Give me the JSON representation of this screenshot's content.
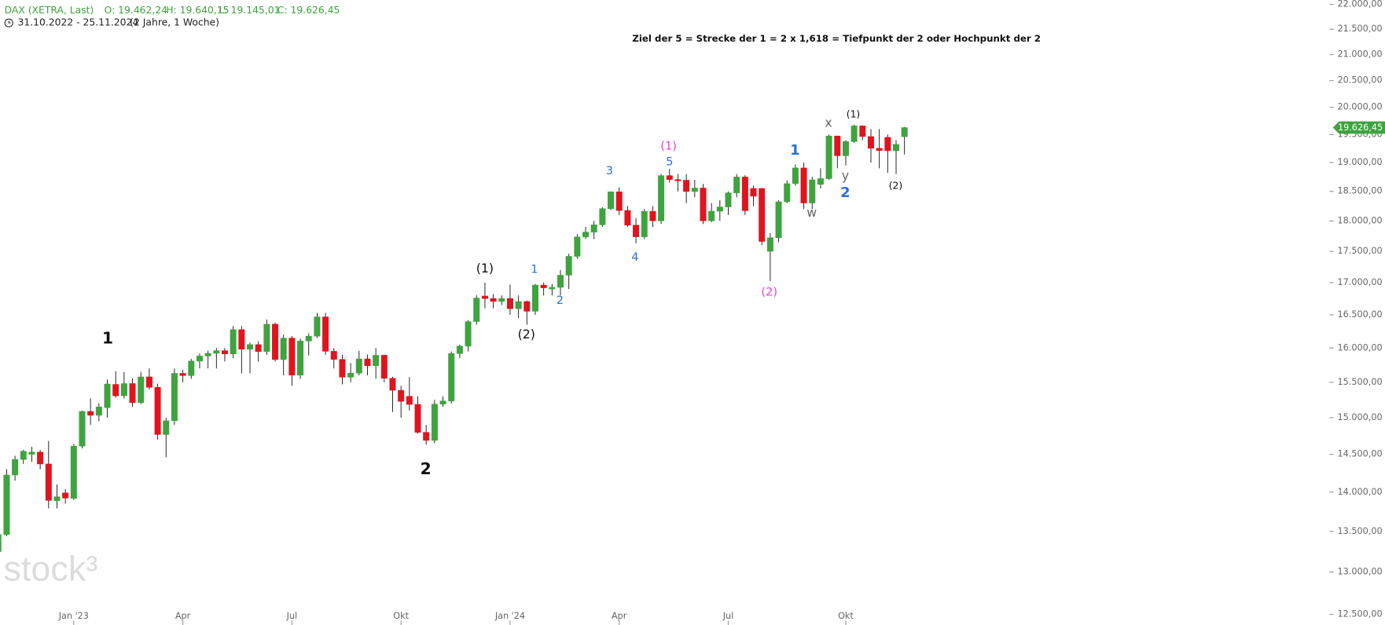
{
  "chart_data": {
    "type": "candlestick",
    "header": {
      "symbol": "DAX (XETRA, Last)",
      "ohlc": [
        "O: 19.462,24",
        "H: 19.640,15",
        "L: 19.145,01",
        "C: 19.626,45"
      ],
      "range": "31.10.2022 - 25.11.2024",
      "span": "(2 Jahre, 1 Woche)"
    },
    "title": "Ziel der 5 = Strecke der 1 = 2 x 1,618 = Tiefpunkt der 2 oder Hochpunkt der 2",
    "watermark": "stock³",
    "up_color": "#3fa33f",
    "down_color": "#e0141e",
    "log_scale": true,
    "ylim": [
      12500,
      22000
    ],
    "yticks": [
      {
        "value": 12500,
        "label": "12.500,00"
      },
      {
        "value": 13000,
        "label": "13.000,00"
      },
      {
        "value": 13500,
        "label": "13.500,00"
      },
      {
        "value": 14000,
        "label": "14.000,00"
      },
      {
        "value": 14500,
        "label": "14.500,00"
      },
      {
        "value": 15000,
        "label": "15.000,00"
      },
      {
        "value": 15500,
        "label": "15.500,00"
      },
      {
        "value": 16000,
        "label": "16.000,00"
      },
      {
        "value": 16500,
        "label": "16.500,00"
      },
      {
        "value": 17000,
        "label": "17.000,00"
      },
      {
        "value": 17500,
        "label": "17.500,00"
      },
      {
        "value": 18000,
        "label": "18.000,00"
      },
      {
        "value": 18500,
        "label": "18.500,00"
      },
      {
        "value": 19000,
        "label": "19.000,00"
      },
      {
        "value": 19500,
        "label": "19.500,00"
      },
      {
        "value": 20000,
        "label": "20.000,00"
      },
      {
        "value": 20500,
        "label": "20.500,00"
      },
      {
        "value": 21000,
        "label": "21.000,00"
      },
      {
        "value": 21500,
        "label": "21.500,00"
      },
      {
        "value": 22000,
        "label": "22.000,00"
      }
    ],
    "current_price": {
      "value": 19626.45,
      "label": "19.626,45"
    },
    "categories": [
      null,
      null,
      null,
      null,
      null,
      null,
      null,
      null,
      null,
      "Jan '23",
      null,
      null,
      null,
      null,
      null,
      null,
      null,
      null,
      null,
      null,
      null,
      null,
      "Apr",
      null,
      null,
      null,
      null,
      null,
      null,
      null,
      null,
      null,
      null,
      null,
      null,
      "Jul",
      null,
      null,
      null,
      null,
      null,
      null,
      null,
      null,
      null,
      null,
      null,
      null,
      "Okt",
      null,
      null,
      null,
      null,
      null,
      null,
      null,
      null,
      null,
      null,
      null,
      null,
      "Jan '24",
      null,
      null,
      null,
      null,
      null,
      null,
      null,
      null,
      null,
      null,
      null,
      null,
      "Apr",
      null,
      null,
      null,
      null,
      null,
      null,
      null,
      null,
      null,
      null,
      null,
      null,
      "Jul",
      null,
      null,
      null,
      null,
      null,
      null,
      null,
      null,
      null,
      null,
      null,
      null,
      null,
      "Okt",
      null,
      null,
      null,
      null,
      null,
      null,
      null
    ],
    "open": [
      13250,
      13460,
      14224,
      14431,
      14500,
      14529,
      14370,
      13890,
      13990,
      13920,
      14610,
      15087,
      15033,
      15140,
      15470,
      15307,
      15482,
      15210,
      15578,
      15428,
      14768,
      14957,
      15629,
      15597,
      15808,
      15882,
      15922,
      15961,
      15913,
      16275,
      15983,
      16051,
      15949,
      16357,
      15830,
      16148,
      15603,
      16105,
      16177,
      16469,
      15952,
      15832,
      15574,
      15632,
      15840,
      15740,
      15893,
      15557,
      15386,
      15300,
      15186,
      14798,
      14688,
      15189,
      15234,
      15919,
      16029,
      16397,
      16790,
      16751,
      16706,
      16752,
      16594,
      16705,
      16555,
      16961,
      16900,
      16926,
      17117,
      17419,
      17735,
      17815,
      17936,
      18206,
      18492,
      18175,
      17930,
      17737,
      18161,
      18001,
      18772,
      18704,
      18693,
      18498,
      18557,
      18002,
      18163,
      18235,
      18475,
      18748,
      18550,
      18550,
      17500,
      17722,
      18322,
      18633,
      18906,
      18302,
      18620,
      18720,
      19474,
      19121,
      19374,
      19657,
      19464,
      19254,
      19450,
      19210,
      19462.24
    ],
    "high": [
      13500,
      14300,
      14480,
      14560,
      14600,
      14560,
      14680,
      14100,
      14040,
      14640,
      15100,
      15270,
      15200,
      15540,
      15660,
      15650,
      15560,
      15650,
      15700,
      15480,
      15000,
      15700,
      15680,
      15840,
      15920,
      15960,
      16000,
      16000,
      16330,
      16330,
      16080,
      16100,
      16430,
      16380,
      16200,
      16180,
      16140,
      16220,
      16530,
      16530,
      16000,
      15900,
      15780,
      15960,
      15900,
      16000,
      15900,
      15580,
      15450,
      15575,
      15300,
      14900,
      15250,
      15300,
      15950,
      16050,
      16420,
      16800,
      17000,
      16820,
      16800,
      16970,
      16800,
      16720,
      16980,
      17000,
      16980,
      17200,
      17460,
      17780,
      17900,
      18000,
      18230,
      18500,
      18570,
      18250,
      18050,
      18200,
      18250,
      18800,
      18890,
      18800,
      18800,
      18700,
      18630,
      18300,
      18350,
      18500,
      18800,
      18780,
      18600,
      18560,
      17800,
      18350,
      18690,
      18970,
      19000,
      18750,
      18900,
      19500,
      19480,
      19400,
      19680,
      19670,
      19600,
      19600,
      19500,
      19400,
      19640.15
    ],
    "low": [
      13150,
      13440,
      14150,
      14370,
      14400,
      14300,
      13790,
      13790,
      13850,
      13900,
      14580,
      14900,
      14950,
      15000,
      15280,
      15270,
      15150,
      15190,
      15400,
      14700,
      14460,
      14900,
      15500,
      15550,
      15700,
      15700,
      15700,
      15800,
      15850,
      15630,
      15630,
      15800,
      15900,
      15800,
      15600,
      15450,
      15550,
      15890,
      16150,
      15900,
      15700,
      15470,
      15500,
      15600,
      15600,
      15550,
      15500,
      15080,
      15000,
      15100,
      14780,
      14630,
      14650,
      15150,
      15200,
      15850,
      15950,
      16350,
      16600,
      16600,
      16650,
      16500,
      16450,
      16350,
      16500,
      16800,
      16800,
      16800,
      16900,
      17380,
      17700,
      17700,
      17900,
      18180,
      18100,
      17900,
      17630,
      17700,
      17900,
      17950,
      18650,
      18500,
      18300,
      18400,
      17950,
      17980,
      18000,
      18100,
      18400,
      18100,
      18250,
      17600,
      17024,
      17650,
      18300,
      18600,
      18200,
      18200,
      18550,
      18700,
      18900,
      18950,
      19350,
      19400,
      19000,
      18900,
      18820,
      18800,
      19145.01
    ],
    "close": [
      13460,
      14224,
      14431,
      14541,
      14529,
      14370,
      13893,
      13940,
      13923,
      14610,
      15087,
      15033,
      15150,
      15476,
      15307,
      15482,
      15210,
      15578,
      15428,
      14768,
      14957,
      15629,
      15597,
      15808,
      15882,
      15922,
      15961,
      15913,
      16275,
      15983,
      16051,
      15949,
      16357,
      15830,
      16148,
      15603,
      16105,
      16177,
      16469,
      15952,
      15832,
      15574,
      15632,
      15840,
      15740,
      15893,
      15557,
      15386,
      15229,
      15186,
      14798,
      14688,
      15189,
      15234,
      15919,
      16029,
      16397,
      16759,
      16751,
      16706,
      16752,
      16594,
      16705,
      16555,
      16961,
      16918,
      16926,
      17117,
      17419,
      17735,
      17815,
      17936,
      18206,
      18492,
      18175,
      17930,
      17737,
      18161,
      18001,
      18772,
      18704,
      18693,
      18498,
      18557,
      18002,
      18163,
      18235,
      18475,
      18748,
      18171,
      18417,
      17661,
      17722,
      18322,
      18633,
      18906,
      18302,
      18699,
      18720,
      19474,
      19121,
      19374,
      19657,
      19464,
      19254,
      19215,
      19210,
      19323,
      19626.45
    ],
    "annotations": [
      {
        "text": "1",
        "color": "#111111"
      },
      {
        "text": "2",
        "color": "#111111"
      },
      {
        "text": "(1)",
        "color": "#111111"
      },
      {
        "text": "(2)",
        "color": "#111111"
      },
      {
        "text": "1",
        "color": "#2a6fd6"
      },
      {
        "text": "2",
        "color": "#2a6fd6"
      },
      {
        "text": "3",
        "color": "#2a6fd6"
      },
      {
        "text": "4",
        "color": "#2a6fd6"
      },
      {
        "text": "(1)",
        "color": "#e83fd0"
      },
      {
        "text": "5",
        "color": "#2a6fd6"
      },
      {
        "text": "(2)",
        "color": "#e83fd0"
      },
      {
        "text": "1",
        "color": "#2a6fd6"
      },
      {
        "text": "w",
        "color": "#666666"
      },
      {
        "text": "x",
        "color": "#666666"
      },
      {
        "text": "y",
        "color": "#666666"
      },
      {
        "text": "2",
        "color": "#2a6fd6"
      },
      {
        "text": "(1)",
        "color": "#111111"
      },
      {
        "text": "(2)",
        "color": "#111111"
      }
    ]
  }
}
